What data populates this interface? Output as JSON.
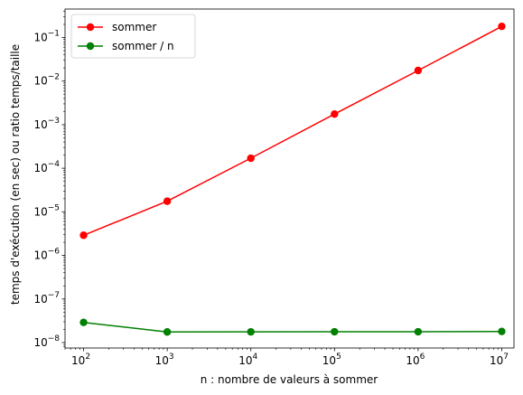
{
  "chart_data": {
    "type": "line",
    "title": "",
    "xlabel": "n : nombre de valeurs à sommer",
    "ylabel": "temps d'exécution (en sec) ou ratio temps/taille",
    "xscale": "log",
    "yscale": "log",
    "xlim": [
      60,
      14000000
    ],
    "ylim": [
      7.5e-09,
      0.45
    ],
    "x": [
      100,
      1000,
      10000,
      100000,
      1000000,
      10000000
    ],
    "x_ticks": [
      {
        "value": 100,
        "base": "10",
        "exp": "2"
      },
      {
        "value": 1000,
        "base": "10",
        "exp": "3"
      },
      {
        "value": 10000,
        "base": "10",
        "exp": "4"
      },
      {
        "value": 100000,
        "base": "10",
        "exp": "5"
      },
      {
        "value": 1000000,
        "base": "10",
        "exp": "6"
      },
      {
        "value": 10000000,
        "base": "10",
        "exp": "7"
      }
    ],
    "y_ticks": [
      {
        "value": 1e-08,
        "base": "10",
        "exp": "−8"
      },
      {
        "value": 1e-07,
        "base": "10",
        "exp": "−7"
      },
      {
        "value": 1e-06,
        "base": "10",
        "exp": "−6"
      },
      {
        "value": 1e-05,
        "base": "10",
        "exp": "−5"
      },
      {
        "value": 0.0001,
        "base": "10",
        "exp": "−4"
      },
      {
        "value": 0.001,
        "base": "10",
        "exp": "−3"
      },
      {
        "value": 0.01,
        "base": "10",
        "exp": "−2"
      },
      {
        "value": 0.1,
        "base": "10",
        "exp": "−1"
      }
    ],
    "series": [
      {
        "name": "sommer",
        "color": "#ff0000",
        "values": [
          2.9e-06,
          1.75e-05,
          0.00017,
          0.00175,
          0.0175,
          0.18
        ]
      },
      {
        "name": "sommer / n",
        "color": "#008000",
        "values": [
          2.9e-08,
          1.75e-08,
          1.76e-08,
          1.77e-08,
          1.77e-08,
          1.8e-08
        ]
      }
    ],
    "grid": false,
    "legend": "top-left"
  }
}
